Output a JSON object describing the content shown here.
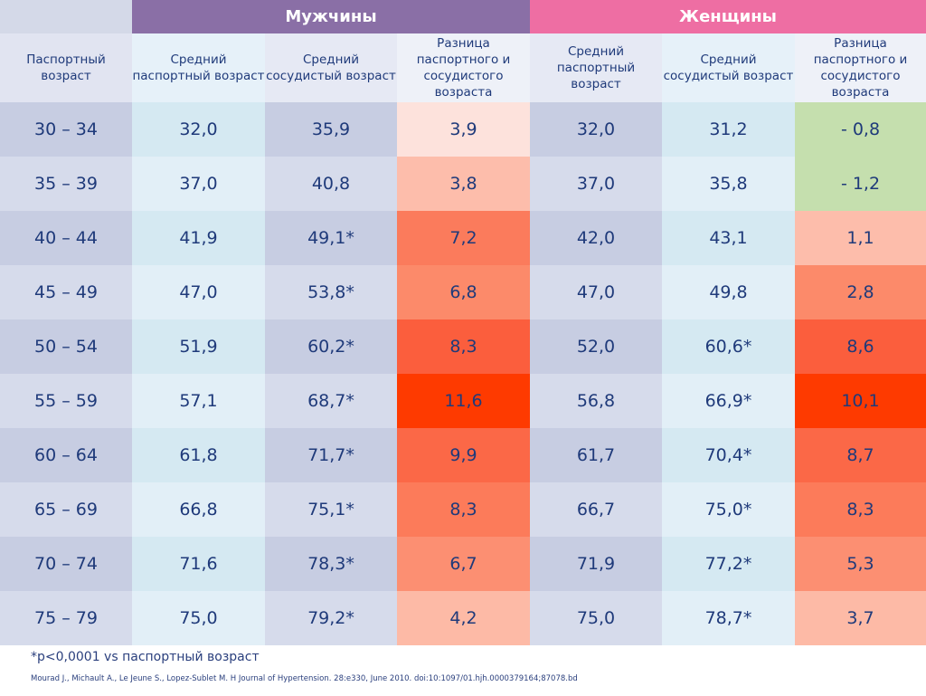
{
  "groups": {
    "men": "Мужчины",
    "women": "Женщины"
  },
  "headers": {
    "passport_age": "Паспортный возраст",
    "avg_passport_age": "Средний паспортный возраст",
    "avg_vascular_age": "Средний сосудистый возраст",
    "difference": "Разница паспортного и сосудистого возраста"
  },
  "rows": [
    {
      "age": "30 – 34",
      "men_pa": "32,0",
      "men_va": "35,9",
      "men_diff": "3,9",
      "men_color": "#fde2dc",
      "women_pa": "32,0",
      "women_va": "31,2",
      "women_diff": "- 0,8",
      "women_color": "#c5dfae"
    },
    {
      "age": "35 – 39",
      "men_pa": "37,0",
      "men_va": "40,8",
      "men_diff": "3,8",
      "men_color": "#fdbdab",
      "women_pa": "37,0",
      "women_va": "35,8",
      "women_diff": "- 1,2",
      "women_color": "#c5dfae"
    },
    {
      "age": "40 – 44",
      "men_pa": "41,9",
      "men_va": "49,1*",
      "men_diff": "7,2",
      "men_color": "#fb7b5c",
      "women_pa": "42,0",
      "women_va": "43,1",
      "women_diff": "1,1",
      "women_color": "#fdbdab"
    },
    {
      "age": "45 – 49",
      "men_pa": "47,0",
      "men_va": "53,8*",
      "men_diff": "6,8",
      "men_color": "#fc8a6a",
      "women_pa": "47,0",
      "women_va": "49,8",
      "women_diff": "2,8",
      "women_color": "#fc8a6a"
    },
    {
      "age": "50 – 54",
      "men_pa": "51,9",
      "men_va": "60,2*",
      "men_diff": "8,3",
      "men_color": "#fb5e3d",
      "women_pa": "52,0",
      "women_va": "60,6*",
      "women_diff": "8,6",
      "women_color": "#fb5e3d"
    },
    {
      "age": "55 – 59",
      "men_pa": "57,1",
      "men_va": "68,7*",
      "men_diff": "11,6",
      "men_color": "#fe3a00",
      "women_pa": "56,8",
      "women_va": "66,9*",
      "women_diff": "10,1",
      "women_color": "#fe3a00"
    },
    {
      "age": "60 – 64",
      "men_pa": "61,8",
      "men_va": "71,7*",
      "men_diff": "9,9",
      "men_color": "#fb6847",
      "women_pa": "61,7",
      "women_va": "70,4*",
      "women_diff": "8,7",
      "women_color": "#fb6847"
    },
    {
      "age": "65 – 69",
      "men_pa": "66,8",
      "men_va": "75,1*",
      "men_diff": "8,3",
      "men_color": "#fc7b5a",
      "women_pa": "66,7",
      "women_va": "75,0*",
      "women_diff": "8,3",
      "women_color": "#fc7b5a"
    },
    {
      "age": "70 – 74",
      "men_pa": "71,6",
      "men_va": "78,3*",
      "men_diff": "6,7",
      "men_color": "#fc8f72",
      "women_pa": "71,9",
      "women_va": "77,2*",
      "women_diff": "5,3",
      "women_color": "#fc8f72"
    },
    {
      "age": "75 – 79",
      "men_pa": "75,0",
      "men_va": "79,2*",
      "men_diff": "4,2",
      "men_color": "#fdbaa6",
      "women_pa": "75,0",
      "women_va": "78,7*",
      "women_diff": "3,7",
      "women_color": "#fdbaa6"
    }
  ],
  "footnote": "*p<0,0001 vs паспортный возраст",
  "source": "Mourad J., Michault A., Le Jeune S., Lopez-Sublet M. H Journal of Hypertension. 28:e330, June 2010. doi:10:1097/01.hjh.0000379164;87078.bd"
}
